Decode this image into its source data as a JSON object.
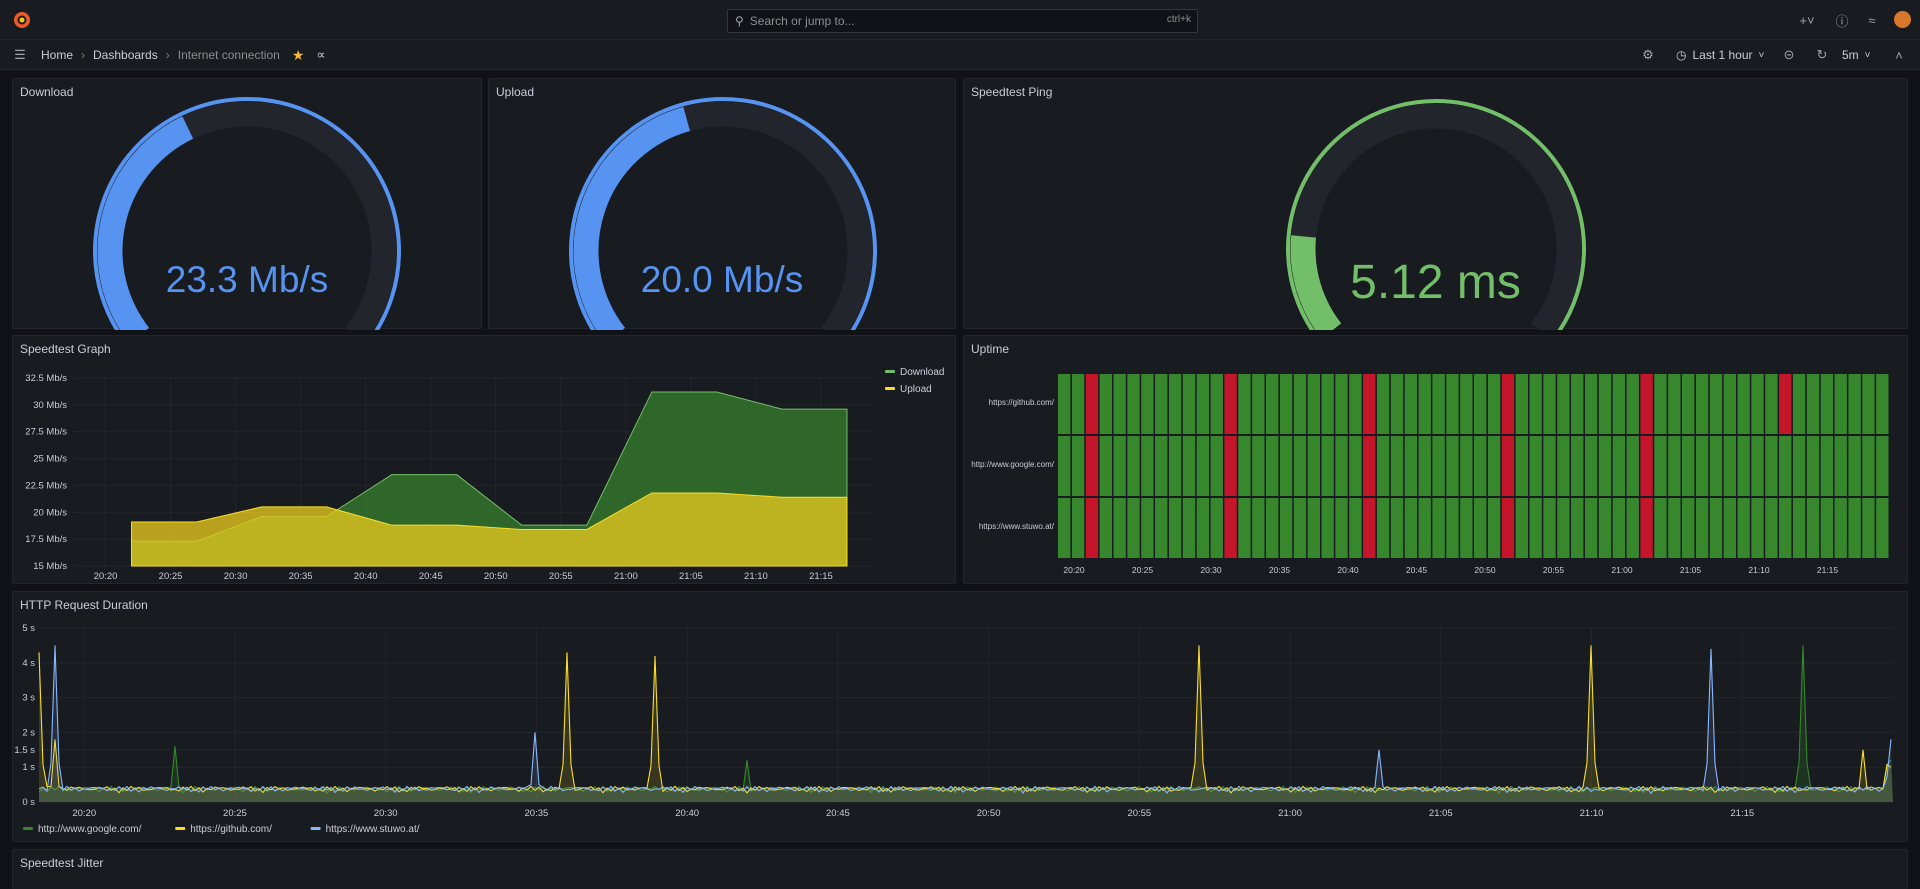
{
  "topbar": {
    "search_placeholder": "Search or jump to...",
    "search_shortcut": "ctrl+k"
  },
  "breadcrumb": {
    "home": "Home",
    "dashboards": "Dashboards",
    "current": "Internet connection"
  },
  "toolbar": {
    "time_range": "Last 1 hour",
    "refresh_interval": "5m"
  },
  "colors": {
    "download": "#5794f2",
    "ping": "#73bf69",
    "green": "#37872d",
    "red": "#c4162a",
    "yellow": "#fade2a",
    "blue": "#8ab8ff"
  },
  "panels": {
    "download": {
      "title": "Download",
      "value": "23.3 Mb/s",
      "fraction": 0.4
    },
    "upload": {
      "title": "Upload",
      "value": "20.0 Mb/s",
      "fraction": 0.44
    },
    "ping": {
      "title": "Speedtest Ping",
      "value": "5.12 ms",
      "fraction": 0.17
    },
    "speedtest_graph": {
      "title": "Speedtest Graph"
    },
    "uptime": {
      "title": "Uptime"
    },
    "http_duration": {
      "title": "HTTP Request Duration"
    },
    "jitter": {
      "title": "Speedtest Jitter"
    }
  },
  "chart_data": [
    {
      "type": "area",
      "title": "Speedtest Graph",
      "x": [
        "20:22",
        "20:27",
        "20:32",
        "20:37",
        "20:42",
        "20:47",
        "20:52",
        "20:57",
        "21:02",
        "21:07",
        "21:12",
        "21:17"
      ],
      "x_ticks": [
        "20:20",
        "20:25",
        "20:30",
        "20:35",
        "20:40",
        "20:45",
        "20:50",
        "20:55",
        "21:00",
        "21:05",
        "21:10",
        "21:15"
      ],
      "y_ticks": [
        "15 Mb/s",
        "17.5 Mb/s",
        "20 Mb/s",
        "22.5 Mb/s",
        "25 Mb/s",
        "27.5 Mb/s",
        "30 Mb/s",
        "32.5 Mb/s"
      ],
      "ylim": [
        15,
        32.5
      ],
      "series": [
        {
          "name": "Download",
          "values": [
            17.3,
            17.3,
            19.6,
            19.6,
            23.5,
            23.5,
            18.8,
            18.8,
            31.2,
            31.2,
            29.6,
            29.6
          ]
        },
        {
          "name": "Upload",
          "values": [
            19.1,
            19.1,
            20.5,
            20.5,
            18.8,
            18.8,
            18.4,
            18.4,
            21.8,
            21.8,
            21.4,
            21.4
          ]
        }
      ],
      "legend": "top-right"
    },
    {
      "type": "heatmap",
      "title": "Uptime",
      "rows": [
        "https://github.com/",
        "http://www.google.com/",
        "https://www.stuwo.at/"
      ],
      "x_ticks": [
        "20:20",
        "20:25",
        "20:30",
        "20:35",
        "20:40",
        "20:45",
        "20:50",
        "20:55",
        "21:00",
        "21:05",
        "21:10",
        "21:15"
      ],
      "columns": 60,
      "down_columns_all": [
        2,
        12,
        22,
        32,
        42
      ],
      "down_columns_github_only": [
        52
      ]
    },
    {
      "type": "line",
      "title": "HTTP Request Duration",
      "x_ticks": [
        "20:20",
        "20:25",
        "20:30",
        "20:35",
        "20:40",
        "20:45",
        "20:50",
        "20:55",
        "21:00",
        "21:05",
        "21:10",
        "21:15"
      ],
      "y_ticks": [
        "0 s",
        "1 s",
        "1.5 s",
        "2 s",
        "3 s",
        "4 s",
        "5 s"
      ],
      "ylim": [
        0,
        5
      ],
      "series": [
        {
          "name": "http://www.google.com/",
          "spikes": [
            [
              20.23,
              1.6
            ],
            [
              20.42,
              1.2
            ],
            [
              20.87,
              4.3
            ],
            [
              21.17,
              4.5
            ],
            [
              21.67,
              1.2
            ]
          ]
        },
        {
          "name": "https://github.com/",
          "spikes": [
            [
              20.02,
              4.3
            ],
            [
              20.19,
              1.8
            ],
            [
              20.36,
              4.3
            ],
            [
              20.39,
              4.2
            ],
            [
              20.57,
              4.5
            ],
            [
              20.79,
              1.5
            ],
            [
              20.87,
              2.0
            ],
            [
              20.92,
              1.4
            ],
            [
              21.1,
              4.5
            ],
            [
              21.2,
              1.0
            ],
            [
              21.23,
              0.9
            ],
            [
              21.26,
              2.2
            ],
            [
              21.28,
              1.5
            ],
            [
              21.35,
              4.3
            ],
            [
              21.4,
              1.0
            ],
            [
              21.5,
              1.0
            ],
            [
              21.67,
              2.0
            ],
            [
              21.76,
              1.0
            ]
          ]
        },
        {
          "name": "https://www.stuwo.at/",
          "spikes": [
            [
              20.19,
              4.5
            ],
            [
              20.35,
              2.0
            ],
            [
              20.63,
              1.5
            ],
            [
              20.85,
              1.2
            ],
            [
              21.14,
              4.4
            ],
            [
              21.29,
              2.9
            ],
            [
              21.5,
              1.8
            ]
          ]
        }
      ],
      "legend": "bottom-left"
    }
  ]
}
